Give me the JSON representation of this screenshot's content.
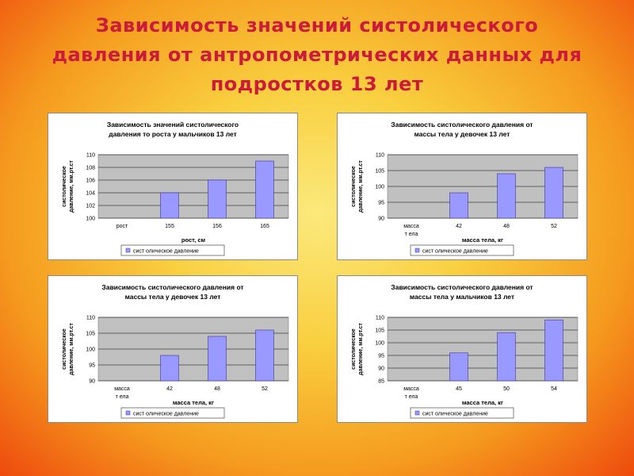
{
  "slide": {
    "title_lines": [
      "Зависимость  значений  систолического",
      "давления от  антропометрических  данных для",
      "подростков  13  лет"
    ]
  },
  "colors": {
    "title": "#cc1b3a",
    "bar_fill": "#9999ff",
    "bar_stroke": "#333399",
    "plot_bg": "#c0c0c0"
  },
  "chart_data": [
    {
      "type": "bar",
      "title_lines": [
        "Зависимость значений систолического",
        "давления то роста у мальчиков 13 лет"
      ],
      "ylabel_lines": [
        "систолическое",
        "давление, мм.рт.ст"
      ],
      "xlabel": "рост, см",
      "categories": [
        "рост",
        "155",
        "156",
        "165"
      ],
      "values": [
        null,
        104,
        106,
        109
      ],
      "ylim": [
        100,
        110
      ],
      "yticks": [
        "100",
        "102",
        "104",
        "106",
        "108",
        "110"
      ],
      "legend": "сист олическое давление",
      "legend_position": "bottom",
      "grid": true
    },
    {
      "type": "bar",
      "title_lines": [
        "Зависимость систолического давления от",
        "массы тела у девочек 13 лет"
      ],
      "ylabel_lines": [
        "систолическое",
        "давление, мм.рт.ст"
      ],
      "xlabel": "масса тела, кг",
      "categories": [
        "масса т ела",
        "42",
        "48",
        "52"
      ],
      "values": [
        null,
        98,
        104,
        106
      ],
      "ylim": [
        90,
        110
      ],
      "yticks": [
        "90",
        "95",
        "100",
        "105",
        "110"
      ],
      "legend": "сист олическое давление",
      "legend_position": "bottom",
      "grid": true
    },
    {
      "type": "bar",
      "title_lines": [
        "Зависимость систолического давления от",
        "массы тела у девочек 13 лет"
      ],
      "ylabel_lines": [
        "систолическое",
        "давление, мм.рт.ст"
      ],
      "xlabel": "масса тела, кг",
      "categories": [
        "масса т ела",
        "42",
        "48",
        "52"
      ],
      "values": [
        null,
        98,
        104,
        106
      ],
      "ylim": [
        90,
        110
      ],
      "yticks": [
        "90",
        "95",
        "100",
        "105",
        "110"
      ],
      "legend": "сист олическое давление",
      "legend_position": "bottom",
      "grid": true
    },
    {
      "type": "bar",
      "title_lines": [
        "Зависимость систолического давления от",
        "массы тела у мальчиков 13 лет"
      ],
      "ylabel_lines": [
        "систолическое",
        "давление, мм.рт.ст"
      ],
      "xlabel": "масса тела, кг",
      "categories": [
        "масса т ела",
        "45",
        "50",
        "54"
      ],
      "values": [
        null,
        96,
        104,
        109
      ],
      "ylim": [
        85,
        110
      ],
      "yticks": [
        "85",
        "90",
        "95",
        "100",
        "105",
        "110"
      ],
      "legend": "сист олическое давление",
      "legend_position": "bottom",
      "grid": true
    }
  ]
}
